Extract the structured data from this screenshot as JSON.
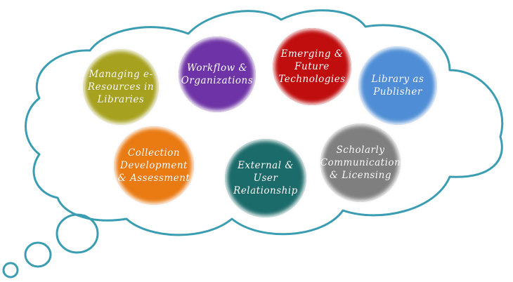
{
  "colors": {
    "cloud_outline": "#3a9db2",
    "cloud_fill": "#ffffff",
    "olive": "#a6a11e",
    "purple": "#6e33a6",
    "red": "#c00d0d",
    "blue": "#4f8ed6",
    "orange": "#ea7a12",
    "teal": "#1b6b6a",
    "gray": "#7f7f7f"
  },
  "bubbles": {
    "managing": {
      "label": "Managing e-\nResources in\nLibraries",
      "color": "#a6a11e"
    },
    "workflow": {
      "label": "Workflow &\nOrganizations",
      "color": "#6e33a6"
    },
    "emerging": {
      "label": "Emerging &\nFuture\nTechnologies",
      "color": "#c00d0d"
    },
    "publisher": {
      "label": "Library as\nPublisher",
      "color": "#4f8ed6"
    },
    "collection": {
      "label": "Collection\nDevelopment\n& Assessment",
      "color": "#ea7a12"
    },
    "external": {
      "label": "External &\nUser\nRelationship",
      "color": "#1b6b6a"
    },
    "scholarly": {
      "label": "Scholarly\nCommunication\n& Licensing",
      "color": "#7f7f7f"
    }
  }
}
